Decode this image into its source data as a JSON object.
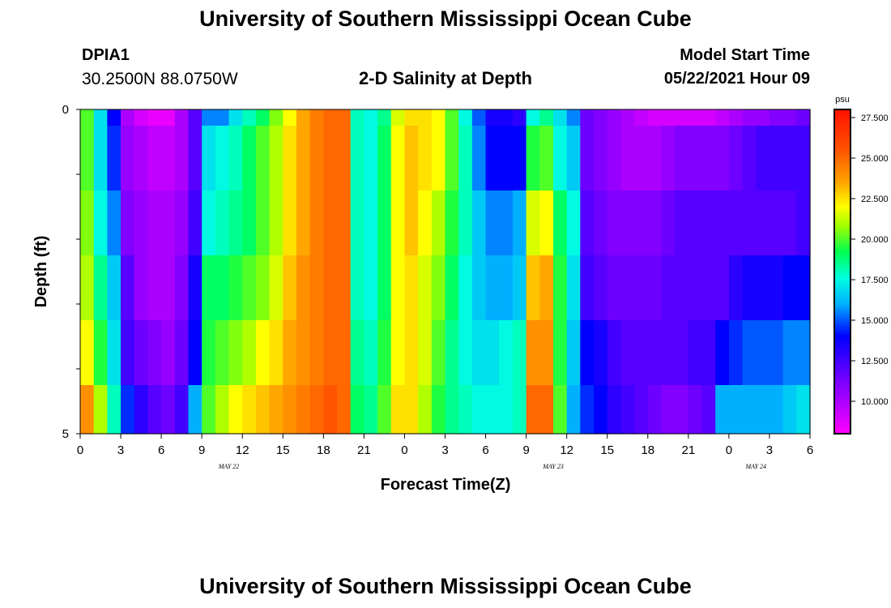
{
  "page": {
    "top_title": "University of Southern Mississippi Ocean Cube",
    "bottom_title": "University of Southern Mississippi Ocean Cube",
    "station_id": "DPIA1",
    "coordinates": "30.2500N  88.0750W",
    "plot_title": "2-D Salinity at Depth",
    "model_start_label": "Model Start Time",
    "model_start_value": "05/22/2021 Hour 09"
  },
  "chart_data": {
    "type": "heatmap",
    "title": "2-D Salinity at Depth",
    "xlabel": "Forecast Time(Z)",
    "ylabel": "Depth (ft)",
    "x_ticks": [
      "0",
      "3",
      "6",
      "9",
      "12",
      "15",
      "18",
      "21",
      "0",
      "3",
      "6",
      "9",
      "12",
      "15",
      "18",
      "21",
      "0",
      "3",
      "6"
    ],
    "x_date_labels": [
      {
        "label": "MAY 22",
        "hour_index": 11
      },
      {
        "label": "MAY 23",
        "hour_index": 35
      },
      {
        "label": "MAY 24",
        "hour_index": 50
      }
    ],
    "y_ticks": [
      "0",
      "5"
    ],
    "y_range": [
      0,
      5
    ],
    "x_start": "05/22/2021 00Z",
    "x_hours": 54,
    "colorbar": {
      "unit": "psu",
      "min": 8.0,
      "max": 28.0,
      "tick_labels": [
        "27.500",
        "25.000",
        "22.500",
        "20.000",
        "17.500",
        "15.000",
        "12.500",
        "10.000"
      ],
      "tick_values": [
        27.5,
        25.0,
        22.5,
        20.0,
        17.5,
        15.0,
        12.5,
        10.0
      ]
    },
    "depth_rows_ft": [
      0.0,
      0.5,
      1.5,
      2.5,
      3.5,
      4.5
    ],
    "salinity_psu": [
      [
        20.0,
        17.0,
        14.0,
        10.0,
        9.0,
        8.5,
        8.5,
        10.0,
        12.0,
        15.5,
        15.5,
        17.0,
        18.0,
        19.0,
        20.5,
        22.0,
        23.5,
        24.5,
        25.0,
        25.0,
        18.0,
        17.5,
        18.5,
        21.5,
        22.5,
        22.5,
        22.0,
        20.0,
        17.5,
        15.0,
        13.5,
        13.5,
        13.0,
        17.5,
        18.5,
        17.0,
        15.5,
        11.5,
        11.0,
        10.5,
        10.0,
        9.5,
        9.0,
        9.0,
        9.0,
        9.0,
        9.0,
        9.5,
        10.0,
        10.5,
        10.5,
        11.0,
        11.0,
        11.5
      ],
      [
        20.0,
        17.0,
        14.5,
        10.5,
        10.0,
        9.5,
        9.5,
        10.0,
        12.0,
        17.0,
        17.5,
        18.0,
        19.0,
        20.0,
        21.0,
        22.5,
        23.5,
        24.5,
        25.0,
        25.0,
        18.0,
        17.5,
        19.0,
        22.0,
        23.0,
        22.5,
        22.0,
        20.0,
        18.0,
        15.5,
        14.0,
        14.0,
        14.0,
        19.5,
        20.0,
        17.5,
        16.5,
        11.5,
        11.0,
        10.5,
        10.0,
        10.0,
        10.0,
        10.5,
        11.0,
        11.0,
        11.0,
        11.0,
        11.5,
        12.0,
        12.5,
        12.5,
        12.5,
        12.5
      ],
      [
        20.5,
        17.5,
        15.5,
        11.0,
        10.5,
        10.0,
        10.0,
        10.5,
        12.5,
        17.5,
        18.0,
        18.5,
        19.0,
        20.0,
        21.0,
        22.5,
        23.5,
        24.5,
        25.0,
        25.0,
        18.0,
        17.5,
        19.0,
        22.0,
        23.0,
        22.0,
        21.0,
        19.5,
        18.0,
        16.5,
        15.5,
        15.5,
        16.0,
        21.5,
        22.0,
        19.0,
        17.5,
        12.0,
        11.5,
        11.0,
        11.0,
        11.0,
        11.0,
        11.5,
        12.0,
        12.0,
        12.0,
        12.0,
        12.0,
        12.0,
        12.0,
        12.0,
        12.0,
        12.5
      ],
      [
        21.0,
        18.5,
        16.5,
        12.0,
        10.5,
        10.0,
        10.0,
        11.0,
        13.5,
        19.0,
        19.0,
        19.5,
        20.0,
        20.5,
        21.5,
        23.0,
        24.0,
        24.5,
        25.0,
        25.0,
        18.0,
        17.5,
        19.0,
        22.0,
        22.5,
        21.5,
        20.5,
        19.0,
        17.5,
        16.5,
        16.0,
        16.0,
        16.5,
        23.0,
        23.5,
        19.5,
        17.0,
        12.5,
        12.0,
        11.5,
        11.5,
        11.5,
        11.5,
        12.0,
        12.0,
        12.0,
        12.0,
        12.0,
        13.0,
        13.5,
        13.5,
        13.5,
        14.0,
        14.0
      ],
      [
        22.0,
        19.5,
        17.0,
        12.5,
        11.5,
        11.0,
        10.5,
        11.5,
        14.0,
        19.5,
        20.0,
        20.5,
        21.0,
        22.0,
        22.5,
        23.5,
        24.0,
        24.5,
        25.0,
        25.0,
        18.5,
        18.0,
        19.5,
        22.0,
        22.5,
        21.5,
        20.0,
        18.5,
        17.5,
        17.0,
        17.0,
        17.5,
        18.0,
        24.0,
        24.0,
        19.5,
        16.5,
        14.0,
        13.5,
        12.5,
        12.0,
        12.0,
        12.0,
        12.0,
        12.0,
        12.5,
        12.5,
        14.0,
        14.5,
        15.0,
        15.0,
        15.0,
        15.5,
        15.5
      ],
      [
        24.0,
        21.0,
        18.0,
        14.5,
        13.0,
        12.0,
        11.5,
        12.5,
        16.0,
        20.0,
        21.0,
        22.0,
        22.5,
        23.0,
        23.5,
        24.0,
        24.5,
        25.0,
        25.5,
        25.0,
        19.0,
        18.5,
        20.0,
        22.5,
        22.5,
        21.0,
        19.5,
        18.5,
        18.0,
        17.5,
        17.5,
        17.5,
        18.0,
        25.0,
        25.0,
        20.0,
        16.0,
        14.5,
        14.0,
        13.0,
        12.5,
        12.0,
        11.5,
        11.0,
        11.0,
        11.5,
        12.0,
        16.0,
        16.0,
        16.0,
        16.0,
        16.0,
        16.5,
        17.0
      ]
    ]
  }
}
